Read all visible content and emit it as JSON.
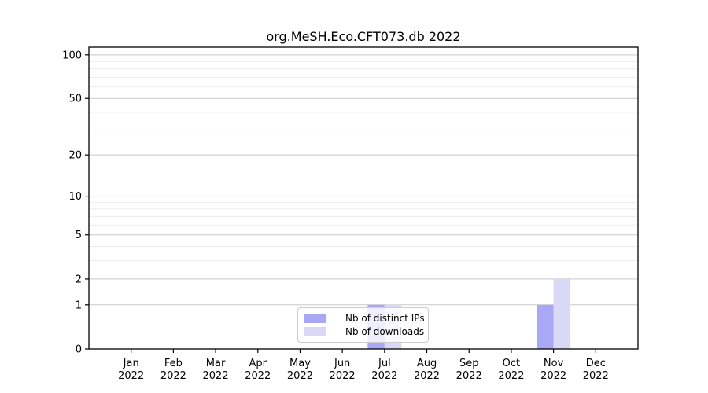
{
  "figure": {
    "background": "#ffffff"
  },
  "chart_data": {
    "type": "bar",
    "title": "org.MeSH.Eco.CFT073.db 2022",
    "categories": [
      "Jan",
      "Feb",
      "Mar",
      "Apr",
      "May",
      "Jun",
      "Jul",
      "Aug",
      "Sep",
      "Oct",
      "Nov",
      "Dec"
    ],
    "category_year": "2022",
    "series": [
      {
        "name": "Nb of distinct IPs",
        "color": "#a8a8f5",
        "values": [
          0,
          0,
          0,
          0,
          0,
          0,
          1,
          0,
          0,
          0,
          1,
          0
        ]
      },
      {
        "name": "Nb of downloads",
        "color": "#d9d9f7",
        "values": [
          0,
          0,
          0,
          0,
          0,
          0,
          1,
          0,
          0,
          0,
          2,
          0
        ]
      }
    ],
    "xlabel": "",
    "ylabel": "",
    "yscale": "log1p",
    "ylim": [
      0,
      113
    ],
    "y_ticks": [
      0,
      1,
      2,
      5,
      10,
      20,
      50,
      100
    ],
    "y_minor_ticks": [
      3,
      4,
      6,
      7,
      8,
      9,
      30,
      40,
      60,
      70,
      80,
      90
    ],
    "grid": true,
    "legend_position": "lower center",
    "colors": {
      "axis": "#000000",
      "grid_major": "#c9c9c9",
      "grid_minor": "#ebebeb",
      "tick_label": "#000000",
      "legend_border": "#cccccc"
    }
  }
}
